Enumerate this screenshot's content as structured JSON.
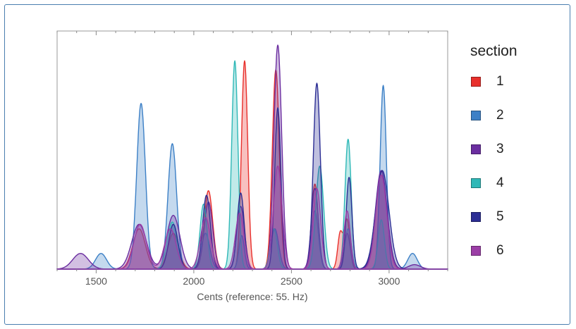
{
  "chart_data": {
    "type": "area",
    "xlabel": "Cents (reference: 55. Hz)",
    "xlim": [
      1300,
      3300
    ],
    "ylim": [
      0,
      1.0
    ],
    "xticks": [
      1500,
      2000,
      2500,
      3000
    ],
    "legend_title": "section",
    "legend_position": "right",
    "series": [
      {
        "name": "1",
        "color": "#e8302c",
        "peaks": [
          [
            1720,
            0.18,
            32
          ],
          [
            1895,
            0.16,
            28
          ],
          [
            2075,
            0.35,
            22
          ],
          [
            2260,
            0.93,
            16
          ],
          [
            2420,
            0.89,
            18
          ],
          [
            2620,
            0.38,
            17
          ],
          [
            2750,
            0.16,
            13
          ],
          [
            2785,
            0.22,
            14
          ],
          [
            2960,
            0.42,
            30
          ]
        ]
      },
      {
        "name": "2",
        "color": "#3d80c6",
        "peaks": [
          [
            1525,
            0.07,
            28
          ],
          [
            1730,
            0.74,
            22
          ],
          [
            1890,
            0.56,
            22
          ],
          [
            2060,
            0.16,
            22
          ],
          [
            2245,
            0.15,
            14
          ],
          [
            2415,
            0.18,
            20
          ],
          [
            2620,
            0.26,
            18
          ],
          [
            2790,
            0.18,
            16
          ],
          [
            2970,
            0.82,
            16
          ],
          [
            3120,
            0.07,
            24
          ]
        ]
      },
      {
        "name": "3",
        "color": "#6b2ea0",
        "peaks": [
          [
            1420,
            0.07,
            40
          ],
          [
            1720,
            0.2,
            38
          ],
          [
            1895,
            0.24,
            34
          ],
          [
            2075,
            0.3,
            22
          ],
          [
            2240,
            0.28,
            20
          ],
          [
            2430,
            1.0,
            20
          ],
          [
            2620,
            0.36,
            18
          ],
          [
            2785,
            0.16,
            16
          ],
          [
            2960,
            0.44,
            30
          ],
          [
            3130,
            0.02,
            30
          ]
        ]
      },
      {
        "name": "4",
        "color": "#2fb8b7",
        "peaks": [
          [
            1890,
            0.21,
            26
          ],
          [
            2050,
            0.29,
            18
          ],
          [
            2210,
            0.93,
            16
          ],
          [
            2410,
            0.18,
            18
          ],
          [
            2645,
            0.46,
            20
          ],
          [
            2790,
            0.58,
            16
          ],
          [
            2960,
            0.22,
            16
          ]
        ]
      },
      {
        "name": "5",
        "color": "#2c2e94",
        "peaks": [
          [
            1895,
            0.2,
            24
          ],
          [
            2065,
            0.33,
            20
          ],
          [
            2240,
            0.34,
            18
          ],
          [
            2430,
            0.72,
            16
          ],
          [
            2630,
            0.83,
            18
          ],
          [
            2795,
            0.41,
            15
          ],
          [
            2965,
            0.44,
            34
          ]
        ]
      },
      {
        "name": "6",
        "color": "#9b3ea6",
        "peaks": [
          [
            1725,
            0.2,
            32
          ],
          [
            1880,
            0.18,
            30
          ],
          [
            2060,
            0.23,
            26
          ],
          [
            2235,
            0.25,
            22
          ],
          [
            2430,
            0.46,
            22
          ],
          [
            2630,
            0.36,
            20
          ],
          [
            2785,
            0.26,
            16
          ],
          [
            2960,
            0.42,
            28
          ]
        ]
      }
    ]
  },
  "axis": {
    "xlabel": "Cents (reference: 55. Hz)"
  },
  "legend": {
    "title": "section",
    "items": [
      {
        "label": "1",
        "color": "#e8302c"
      },
      {
        "label": "2",
        "color": "#3d80c6"
      },
      {
        "label": "3",
        "color": "#6b2ea0"
      },
      {
        "label": "4",
        "color": "#2fb8b7"
      },
      {
        "label": "5",
        "color": "#2c2e94"
      },
      {
        "label": "6",
        "color": "#9b3ea6"
      }
    ]
  }
}
